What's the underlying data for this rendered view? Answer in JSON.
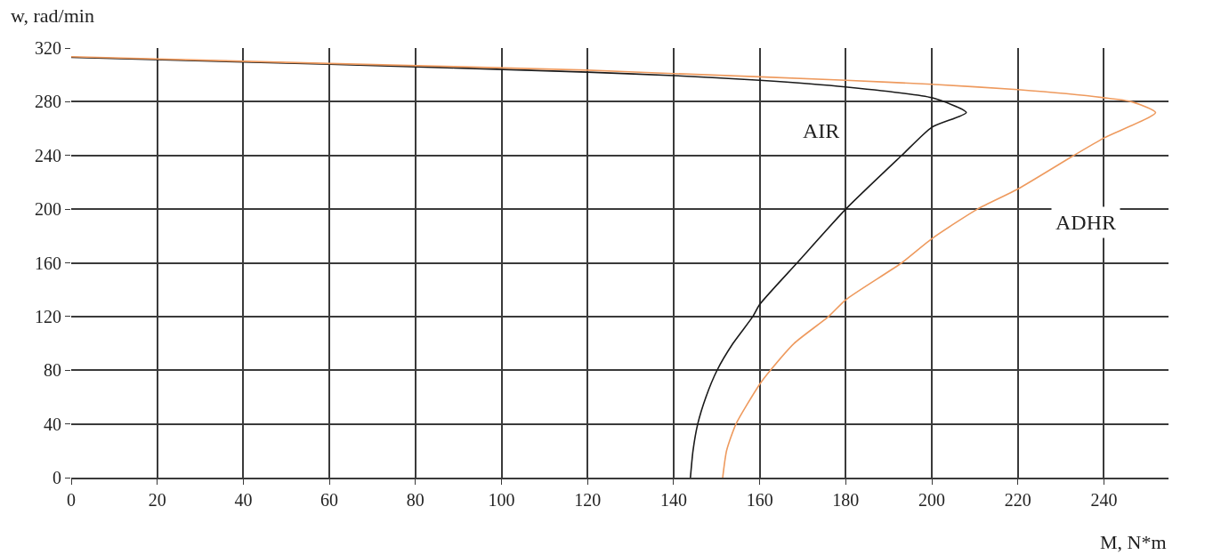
{
  "chart_data": {
    "type": "line",
    "xlabel": "M, N*m",
    "ylabel": "w, rad/min",
    "xlim": [
      0,
      255
    ],
    "xticks": [
      0,
      20,
      40,
      60,
      80,
      100,
      120,
      140,
      160,
      180,
      200,
      220,
      240
    ],
    "ylim": [
      0,
      320
    ],
    "yticks": [
      0,
      40,
      80,
      120,
      160,
      200,
      240,
      280,
      320
    ],
    "grid": true,
    "legend": false,
    "marker": "none",
    "line_style": "solid",
    "series": [
      {
        "name": "AIR",
        "color": "#1a1a1a",
        "x": [
          143.9,
          144.5,
          145.6,
          147.5,
          150.1,
          153.8,
          158.4,
          160,
          168.7,
          180,
          193,
          200,
          208,
          200,
          180,
          160,
          140,
          120,
          60,
          0
        ],
        "values": [
          0,
          20,
          40,
          60,
          80,
          100,
          120,
          129,
          160,
          200,
          240,
          261,
          272,
          283,
          291,
          296,
          299.5,
          302,
          308,
          313
        ]
      },
      {
        "name": "ADHR",
        "color": "#ee9a5e",
        "x": [
          151.4,
          152.3,
          154.5,
          160,
          162.5,
          168,
          176,
          180,
          193,
          200,
          210.6,
          220,
          233,
          240,
          252,
          246.4,
          240,
          220,
          200,
          180,
          140,
          120,
          60,
          0
        ],
        "values": [
          0,
          20,
          40,
          69.6,
          80,
          100,
          120,
          132.5,
          160,
          178,
          200,
          215,
          240,
          253,
          272,
          280,
          283,
          289,
          293,
          296,
          301,
          303.5,
          308.5,
          313.5
        ]
      }
    ]
  }
}
